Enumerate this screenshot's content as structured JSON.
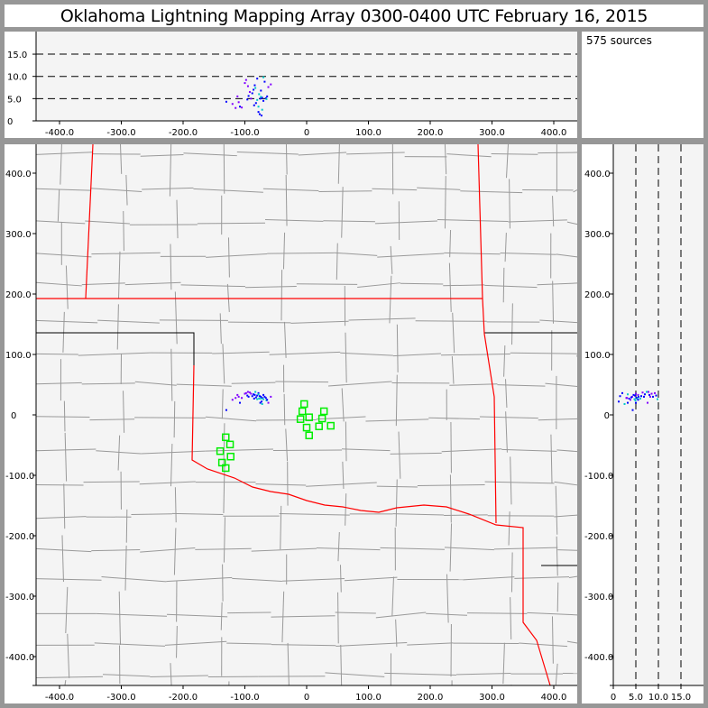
{
  "title": "Oklahoma Lightning Mapping Array   0300-0400 UTC  February 16, 2015",
  "source_count_label": "575 sources",
  "colors": {
    "frame": "#979797",
    "plot_bg": "#f4f4f4",
    "county": "#999999",
    "state": "#ff0000",
    "station": "#00ee00",
    "source_early": "#8000ff",
    "source_mid": "#0000ff",
    "source_late": "#00c8c8"
  },
  "chart_data": [
    {
      "type": "scatter",
      "name_panel": "altitude-vs-east-west",
      "xlim": [
        -438,
        438
      ],
      "ylim": [
        0,
        20
      ],
      "xticks": [
        "-400.0",
        "-300.0",
        "-200.0",
        "-100.0",
        "0",
        "100.0",
        "200.0",
        "300.0",
        "400.0"
      ],
      "yticks": [
        "0",
        "5.0",
        "10.0",
        "15.0"
      ],
      "dashed_grid": [
        5,
        10,
        15
      ]
    },
    {
      "type": "scatter",
      "name_panel": "plan-view-map",
      "xlim": [
        -438,
        438
      ],
      "ylim": [
        -448,
        448
      ],
      "xticks": [
        "-400.0",
        "-300.0",
        "-200.0",
        "-100.0",
        "0",
        "100.0",
        "200.0",
        "300.0",
        "400.0"
      ],
      "yticks": [
        "-400.0",
        "-300.0",
        "-200.0",
        "-100.0",
        "0",
        "100.0",
        "200.0",
        "300.0",
        "400.0"
      ]
    },
    {
      "type": "scatter",
      "name_panel": "north-south-vs-altitude",
      "xlim": [
        0,
        20
      ],
      "ylim": [
        -448,
        448
      ],
      "xticks": [
        "0",
        "5.0",
        "10.0",
        "15.0"
      ],
      "dashed_grid": [
        5,
        10,
        15
      ]
    }
  ],
  "stations_km": [
    [
      -4,
      18
    ],
    [
      -7,
      6
    ],
    [
      4,
      -4
    ],
    [
      -10,
      -7
    ],
    [
      28,
      6
    ],
    [
      25,
      -6
    ],
    [
      20,
      -19
    ],
    [
      39,
      -18
    ],
    [
      0,
      -21
    ],
    [
      4,
      -34
    ],
    [
      -131,
      -37
    ],
    [
      -124,
      -49
    ],
    [
      -140,
      -60
    ],
    [
      -123,
      -69
    ],
    [
      -137,
      -79
    ],
    [
      -131,
      -88
    ]
  ],
  "sources_km": [
    [
      -100,
      35,
      8.5,
      0
    ],
    [
      -98,
      36,
      9.2,
      0
    ],
    [
      -95,
      38,
      7.8,
      0
    ],
    [
      -92,
      37,
      6.5,
      0
    ],
    [
      -90,
      35,
      5.0,
      0
    ],
    [
      -110,
      30,
      4.2,
      0
    ],
    [
      -105,
      28,
      3.0,
      0
    ],
    [
      -112,
      33,
      5.5,
      0
    ],
    [
      -96,
      32,
      4.8,
      1
    ],
    [
      -94,
      30,
      5.6,
      1
    ],
    [
      -88,
      31,
      6.2,
      1
    ],
    [
      -86,
      34,
      7.0,
      1
    ],
    [
      -84,
      33,
      8.0,
      1
    ],
    [
      -80,
      32,
      9.5,
      1
    ],
    [
      -82,
      29,
      4.0,
      1
    ],
    [
      -85,
      27,
      3.5,
      1
    ],
    [
      -78,
      36,
      2.0,
      1
    ],
    [
      -76,
      31,
      1.5,
      1
    ],
    [
      -74,
      30,
      6.8,
      1
    ],
    [
      -72,
      28,
      5.2,
      1
    ],
    [
      -70,
      33,
      4.5,
      1
    ],
    [
      -68,
      30,
      8.8,
      1
    ],
    [
      -66,
      28,
      5.1,
      1
    ],
    [
      -120,
      25,
      3.8,
      0
    ],
    [
      -130,
      8,
      4.3,
      1
    ],
    [
      -108,
      20,
      3.2,
      1
    ],
    [
      -75,
      20,
      5.0,
      1
    ],
    [
      -72,
      18,
      2.5,
      2
    ],
    [
      -70,
      26,
      9.8,
      2
    ],
    [
      -77,
      27,
      6.0,
      2
    ],
    [
      -80,
      26,
      4.7,
      2
    ],
    [
      -83,
      38,
      7.4,
      2
    ],
    [
      -78,
      34,
      3.2,
      2
    ],
    [
      -74,
      27,
      5.4,
      2
    ],
    [
      -65,
      24,
      4.9,
      2
    ],
    [
      -64,
      25,
      5.5,
      1
    ],
    [
      -62,
      20,
      7.6,
      0
    ],
    [
      -58,
      30,
      8.2,
      0
    ],
    [
      -115,
      28,
      2.9,
      0
    ],
    [
      -73,
      22,
      1.2,
      1
    ]
  ]
}
